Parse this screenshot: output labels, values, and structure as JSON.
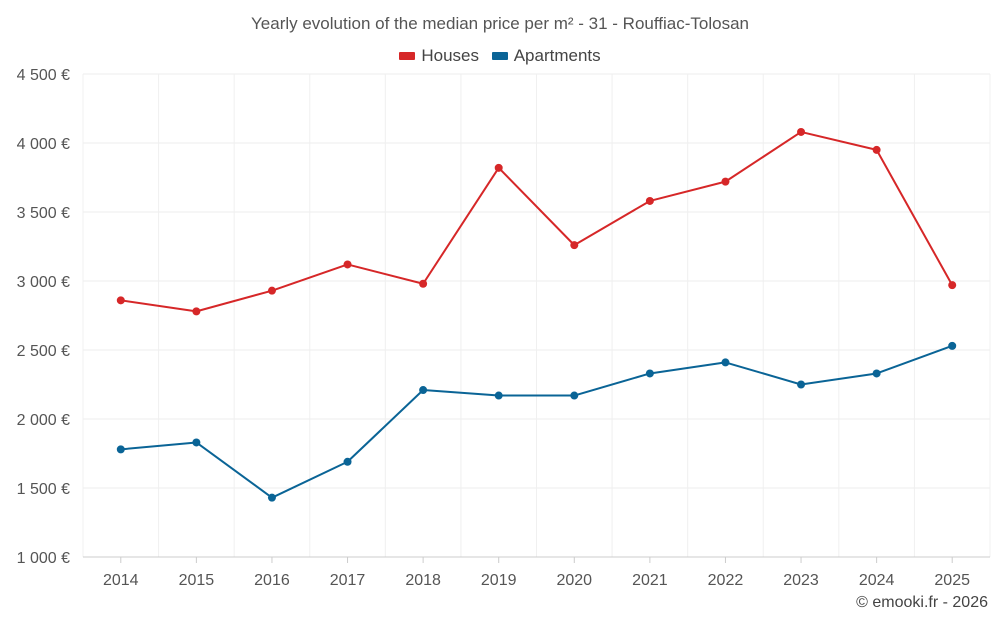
{
  "chart_data": {
    "type": "line",
    "title": "Yearly evolution of the median price per m² - 31 - Rouffiac-Tolosan",
    "xlabel": "",
    "ylabel": "",
    "categories": [
      "2014",
      "2015",
      "2016",
      "2017",
      "2018",
      "2019",
      "2020",
      "2021",
      "2022",
      "2023",
      "2024",
      "2025"
    ],
    "ylim": [
      1000,
      4500
    ],
    "yticks": [
      1000,
      1500,
      2000,
      2500,
      3000,
      3500,
      4000,
      4500
    ],
    "ytick_labels": [
      "1 000 €",
      "1 500 €",
      "2 000 €",
      "2 500 €",
      "3 000 €",
      "3 500 €",
      "4 000 €",
      "4 500 €"
    ],
    "grid": true,
    "legend_position": "top-center",
    "series": [
      {
        "name": "Houses",
        "color": "#d62728",
        "values": [
          2860,
          2780,
          2930,
          3120,
          2980,
          3820,
          3260,
          3580,
          3720,
          4080,
          3950,
          2970
        ]
      },
      {
        "name": "Apartments",
        "color": "#0a6496",
        "values": [
          1780,
          1830,
          1430,
          1690,
          2210,
          2170,
          2170,
          2330,
          2410,
          2250,
          2330,
          2530
        ]
      }
    ]
  },
  "credit": "© emooki.fr - 2026"
}
